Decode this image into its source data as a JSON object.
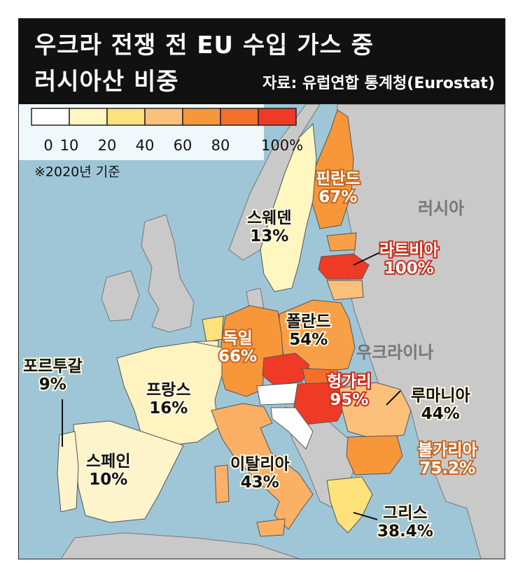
{
  "title_line1": "우크라 전쟁 전 EU 수입 가스 중",
  "title_line2": "러시아산 비중",
  "source": "자료: 유럽연합 통계청(Eurostat)",
  "note": "※2020년 기준",
  "legend": {
    "ticks": [
      "0",
      "10",
      "20",
      "40",
      "60",
      "80",
      "100%"
    ],
    "colors": [
      "#ffffff",
      "#fff6c0",
      "#fde17a",
      "#fbc07a",
      "#f8963a",
      "#f4702a",
      "#ef3a26"
    ]
  },
  "regions": {
    "russia": "러시아",
    "ukraine": "우크라이나"
  },
  "countries": [
    {
      "key": "finland",
      "name": "핀란드",
      "value": "67%",
      "color": "#f8963a"
    },
    {
      "key": "sweden",
      "name": "스웨덴",
      "value": "13%",
      "color": "#fff6c0"
    },
    {
      "key": "latvia",
      "name": "라트비아",
      "value": "100%",
      "color": "#ef3a26"
    },
    {
      "key": "poland",
      "name": "폴란드",
      "value": "54%",
      "color": "#f8a048"
    },
    {
      "key": "germany",
      "name": "독일",
      "value": "66%",
      "color": "#f8963a"
    },
    {
      "key": "portugal",
      "name": "포르투갈",
      "value": "9%",
      "color": "#fdf4cc"
    },
    {
      "key": "france",
      "name": "프랑스",
      "value": "16%",
      "color": "#fff3c0"
    },
    {
      "key": "hungary",
      "name": "헝가리",
      "value": "95%",
      "color": "#ef3a26"
    },
    {
      "key": "romania",
      "name": "루마니아",
      "value": "44%",
      "color": "#fbc07a"
    },
    {
      "key": "spain",
      "name": "스페인",
      "value": "10%",
      "color": "#fdf4cc"
    },
    {
      "key": "italy",
      "name": "이탈리아",
      "value": "43%",
      "color": "#fbb066"
    },
    {
      "key": "bulgaria",
      "name": "불가리아",
      "value": "75.2%",
      "color": "#f8963a"
    },
    {
      "key": "greece",
      "name": "그리스",
      "value": "38.4%",
      "color": "#fde17a"
    }
  ]
}
